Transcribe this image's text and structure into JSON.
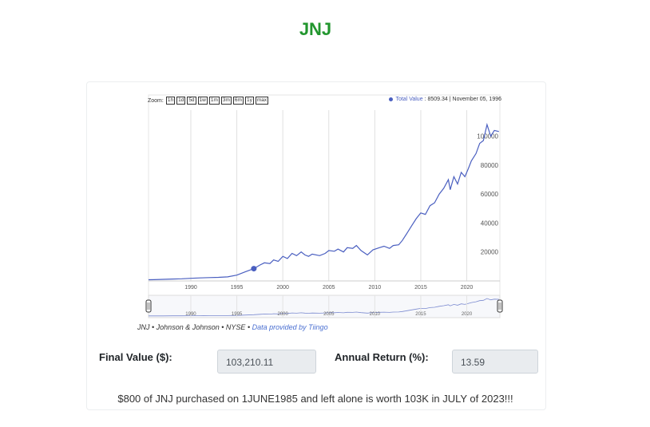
{
  "page": {
    "title": "JNJ"
  },
  "chart_data": {
    "type": "line",
    "zoom_label": "Zoom:",
    "zoom_buttons": [
      "1h",
      "1d",
      "5d",
      "1w",
      "1m",
      "3m",
      "6m",
      "1y",
      "max"
    ],
    "readout": {
      "series_name": "Total Value",
      "value": "8509.34",
      "date": "November 05, 1996"
    },
    "series": [
      {
        "name": "Total Value",
        "color": "#4a5fc0",
        "x": [
          1985.4,
          1986,
          1987,
          1988,
          1989,
          1990,
          1991,
          1992,
          1993,
          1994,
          1995,
          1996,
          1996.85,
          1997.5,
          1998,
          1998.6,
          1999,
          1999.5,
          2000,
          2000.5,
          2001,
          2001.5,
          2002,
          2002.4,
          2002.8,
          2003.2,
          2004,
          2004.6,
          2005,
          2005.6,
          2006,
          2006.6,
          2007,
          2007.6,
          2008,
          2008.5,
          2009.2,
          2009.8,
          2010.5,
          2011,
          2011.6,
          2012,
          2012.6,
          2013,
          2013.5,
          2014,
          2014.5,
          2015,
          2015.5,
          2016,
          2016.5,
          2017,
          2017.5,
          2018,
          2018.2,
          2018.6,
          2019,
          2019.4,
          2019.8,
          2020.2,
          2020.5,
          2021,
          2021.4,
          2021.8,
          2022.2,
          2022.6,
          2023,
          2023.5
        ],
        "y": [
          800,
          900,
          1100,
          1300,
          1500,
          1800,
          2100,
          2300,
          2500,
          2800,
          4000,
          6500,
          8509,
          11000,
          12500,
          12000,
          14500,
          13500,
          17000,
          15500,
          19000,
          17500,
          20000,
          18000,
          17000,
          18500,
          17500,
          19000,
          21000,
          20500,
          22000,
          20000,
          23000,
          22500,
          24500,
          21000,
          18000,
          21500,
          23000,
          24000,
          22500,
          24500,
          25000,
          28000,
          33000,
          38000,
          43000,
          47000,
          46000,
          52000,
          54000,
          60000,
          64000,
          70000,
          63000,
          72000,
          67000,
          75000,
          72000,
          78000,
          83000,
          88000,
          95000,
          97000,
          108000,
          100000,
          104000,
          103210
        ]
      }
    ],
    "x_ticks": [
      1990,
      1995,
      2000,
      2005,
      2010,
      2015,
      2020
    ],
    "y_ticks": [
      20000,
      40000,
      60000,
      80000,
      100000
    ],
    "xlim": [
      1985.4,
      2023.6
    ],
    "ylim": [
      0,
      118000
    ],
    "grid": true,
    "navigator": {
      "x_ticks": [
        1990,
        1995,
        2000,
        2005,
        2010,
        2015,
        2020
      ]
    }
  },
  "attribution": {
    "ticker": "JNJ",
    "company": "Johnson & Johnson",
    "exchange": "NYSE",
    "link_text": "Data provided by Tiingo"
  },
  "results": {
    "final_value_label": "Final Value ($):",
    "final_value": "103,210.11",
    "annual_return_label": "Annual Return (%):",
    "annual_return": "13.59"
  },
  "summary": "$800 of JNJ purchased on 1JUNE1985 and left alone is worth 103K in JULY of 2023!!!"
}
